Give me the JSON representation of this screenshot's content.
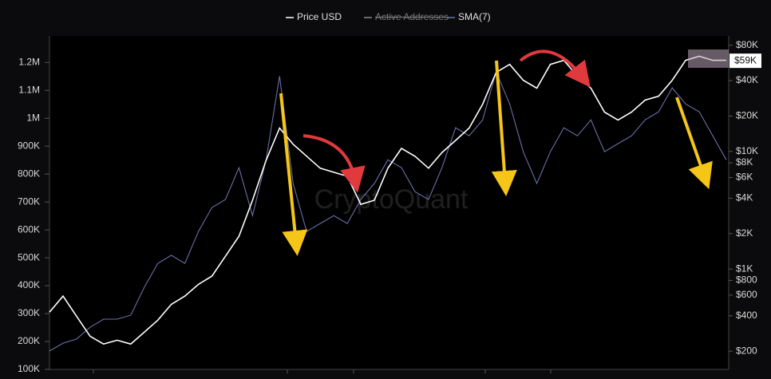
{
  "chart_data": {
    "type": "line",
    "legend_hidden": [
      {
        "name": "Active Addresses",
        "color": "#8a8a8a"
      }
    ],
    "watermark": "CryptoQuant",
    "price_tag": {
      "value": 59000,
      "label": "$59K"
    },
    "categories": [
      null,
      null,
      null,
      null,
      null,
      null,
      null,
      null,
      null,
      null,
      null,
      null,
      null,
      null,
      null,
      null,
      null,
      null,
      null,
      null,
      null,
      null,
      null,
      null,
      null,
      null,
      null,
      null,
      null,
      null,
      null,
      null,
      null,
      null,
      null,
      null,
      null,
      null,
      null,
      null,
      null,
      null,
      null,
      null,
      null,
      null,
      null,
      null,
      null,
      null,
      null
    ],
    "series": [
      {
        "name": "Price USD",
        "color": "#ffffff",
        "axis": "y2",
        "values": [
          430,
          588,
          397,
          268,
          230,
          248,
          230,
          290,
          367,
          500,
          588,
          740,
          870,
          1285,
          1900,
          3840,
          8400,
          15800,
          11500,
          9100,
          7200,
          6650,
          6150,
          3550,
          3840,
          7200,
          10600,
          9100,
          7200,
          9800,
          12400,
          15800,
          25200,
          47000,
          55000,
          40300,
          34500,
          55000,
          59500,
          43600,
          34500,
          21600,
          18500,
          21600,
          27300,
          29500,
          40300,
          59500,
          64500,
          59500,
          59500
        ]
      },
      {
        "name": "SMA(7)",
        "color": "#6b6fa8",
        "values": [
          166000,
          194000,
          209000,
          251000,
          280000,
          280000,
          294000,
          394000,
          480000,
          509000,
          480000,
          594000,
          680000,
          709000,
          823000,
          651000,
          851000,
          1151000,
          766000,
          594000,
          623000,
          651000,
          623000,
          709000,
          766000,
          851000,
          823000,
          737000,
          709000,
          823000,
          966000,
          937000,
          994000,
          1166000,
          1051000,
          880000,
          766000,
          880000,
          966000,
          937000,
          994000,
          880000,
          909000,
          937000,
          994000,
          1023000,
          1109000,
          1051000,
          1023000,
          937000,
          851000
        ]
      }
    ],
    "ylim": [
      100000,
      1295000
    ],
    "yticks": [
      {
        "value": 100000,
        "label": "100K"
      },
      {
        "value": 200000,
        "label": "200K"
      },
      {
        "value": 300000,
        "label": "300K"
      },
      {
        "value": 400000,
        "label": "400K"
      },
      {
        "value": 500000,
        "label": "500K"
      },
      {
        "value": 600000,
        "label": "600K"
      },
      {
        "value": 700000,
        "label": "700K"
      },
      {
        "value": 800000,
        "label": "800K"
      },
      {
        "value": 900000,
        "label": "900K"
      },
      {
        "value": 1000000,
        "label": "1M"
      },
      {
        "value": 1100000,
        "label": "1.1M"
      },
      {
        "value": 1200000,
        "label": "1.2M"
      }
    ],
    "y2lim": [
      140,
      96000
    ],
    "y2_log": true,
    "y2ticks": [
      {
        "value": 200,
        "label": "$200"
      },
      {
        "value": 400,
        "label": "$400"
      },
      {
        "value": 600,
        "label": "$600"
      },
      {
        "value": 800,
        "label": "$800"
      },
      {
        "value": 1000,
        "label": "$1K"
      },
      {
        "value": 2000,
        "label": "$2K"
      },
      {
        "value": 4000,
        "label": "$4K"
      },
      {
        "value": 6000,
        "label": "$6K"
      },
      {
        "value": 8000,
        "label": "$8K"
      },
      {
        "value": 10000,
        "label": "$10K"
      },
      {
        "value": 20000,
        "label": "$20K"
      },
      {
        "value": 40000,
        "label": "$40K"
      },
      {
        "value": 80000,
        "label": "$80K"
      }
    ]
  }
}
